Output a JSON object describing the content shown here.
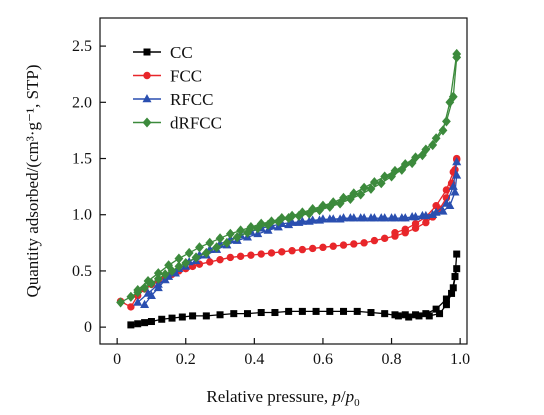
{
  "chart_data": {
    "type": "line",
    "title": "",
    "xlabel": "Relative pressure, p/p₀",
    "xlabel_parts": {
      "prefix": "Relative pressure, ",
      "p": "p",
      "slash": "/",
      "p0": "p",
      "sub0": "0"
    },
    "ylabel": "Quantity adsorbed/(cm³·g⁻¹, STP)",
    "xlim": [
      -0.05,
      1.02
    ],
    "ylim": [
      -0.15,
      2.75
    ],
    "xticks": [
      0,
      0.2,
      0.4,
      0.6,
      0.8,
      1.0
    ],
    "xtick_labels": [
      "0",
      "0.2",
      "0.4",
      "0.6",
      "0.8",
      "1.0"
    ],
    "yticks": [
      0,
      0.5,
      1.0,
      1.5,
      2.0,
      2.5
    ],
    "ytick_labels": [
      "0",
      "0.5",
      "1.0",
      "1.5",
      "2.0",
      "2.5"
    ],
    "grid": false,
    "legend_position": "top-left",
    "series": [
      {
        "name": "CC",
        "color": "#000000",
        "marker": "square",
        "adsorption": {
          "x": [
            0.04,
            0.06,
            0.08,
            0.1,
            0.13,
            0.16,
            0.19,
            0.22,
            0.26,
            0.3,
            0.34,
            0.38,
            0.42,
            0.46,
            0.5,
            0.54,
            0.58,
            0.62,
            0.66,
            0.7,
            0.74,
            0.78,
            0.82,
            0.85,
            0.88,
            0.91,
            0.94,
            0.96,
            0.975,
            0.985,
            0.99
          ],
          "y": [
            0.02,
            0.03,
            0.04,
            0.05,
            0.07,
            0.08,
            0.09,
            0.1,
            0.1,
            0.11,
            0.12,
            0.12,
            0.13,
            0.13,
            0.14,
            0.14,
            0.14,
            0.14,
            0.14,
            0.14,
            0.13,
            0.12,
            0.1,
            0.09,
            0.1,
            0.1,
            0.12,
            0.2,
            0.3,
            0.45,
            0.65
          ]
        },
        "desorption": {
          "x": [
            0.99,
            0.98,
            0.96,
            0.93,
            0.9,
            0.87,
            0.84,
            0.81
          ],
          "y": [
            0.52,
            0.35,
            0.25,
            0.16,
            0.12,
            0.11,
            0.11,
            0.11
          ]
        }
      },
      {
        "name": "FCC",
        "color": "#e8262a",
        "marker": "circle",
        "adsorption": {
          "x": [
            0.01,
            0.04,
            0.06,
            0.08,
            0.1,
            0.12,
            0.14,
            0.16,
            0.18,
            0.2,
            0.22,
            0.24,
            0.27,
            0.3,
            0.33,
            0.36,
            0.39,
            0.42,
            0.45,
            0.48,
            0.51,
            0.54,
            0.57,
            0.6,
            0.63,
            0.66,
            0.69,
            0.72,
            0.75,
            0.78,
            0.81,
            0.84,
            0.87,
            0.9,
            0.92,
            0.94,
            0.96,
            0.975,
            0.985,
            0.99
          ],
          "y": [
            0.23,
            0.18,
            0.28,
            0.34,
            0.38,
            0.41,
            0.44,
            0.47,
            0.5,
            0.52,
            0.54,
            0.56,
            0.58,
            0.6,
            0.62,
            0.63,
            0.64,
            0.65,
            0.66,
            0.67,
            0.68,
            0.69,
            0.7,
            0.71,
            0.72,
            0.73,
            0.74,
            0.75,
            0.77,
            0.79,
            0.81,
            0.84,
            0.88,
            0.93,
            0.98,
            1.05,
            1.15,
            1.28,
            1.4,
            1.5
          ]
        },
        "desorption": {
          "x": [
            0.99,
            0.98,
            0.96,
            0.93,
            0.9,
            0.87,
            0.84,
            0.81
          ],
          "y": [
            1.49,
            1.38,
            1.22,
            1.08,
            0.98,
            0.92,
            0.87,
            0.84
          ]
        }
      },
      {
        "name": "RFCC",
        "color": "#2a4fb0",
        "marker": "triangle",
        "adsorption": {
          "x": [
            0.08,
            0.1,
            0.12,
            0.14,
            0.17,
            0.2,
            0.23,
            0.26,
            0.29,
            0.32,
            0.35,
            0.38,
            0.41,
            0.44,
            0.47,
            0.5,
            0.53,
            0.56,
            0.59,
            0.62,
            0.65,
            0.68,
            0.71,
            0.74,
            0.77,
            0.8,
            0.83,
            0.86,
            0.89,
            0.92,
            0.95,
            0.97,
            0.985,
            0.99
          ],
          "y": [
            0.2,
            0.28,
            0.35,
            0.42,
            0.48,
            0.54,
            0.59,
            0.64,
            0.69,
            0.73,
            0.77,
            0.8,
            0.83,
            0.86,
            0.89,
            0.91,
            0.93,
            0.94,
            0.95,
            0.96,
            0.96,
            0.97,
            0.97,
            0.97,
            0.97,
            0.97,
            0.97,
            0.98,
            0.99,
            1.0,
            1.03,
            1.08,
            1.2,
            1.35
          ]
        },
        "desorption": {
          "x": [
            0.99,
            0.98,
            0.96,
            0.93,
            0.9,
            0.87,
            0.84,
            0.81,
            0.78,
            0.75,
            0.72,
            0.69,
            0.66,
            0.63,
            0.6,
            0.57,
            0.54,
            0.51,
            0.48,
            0.45,
            0.42,
            0.39,
            0.36,
            0.33,
            0.3,
            0.27,
            0.24,
            0.21,
            0.18,
            0.15,
            0.12,
            0.09,
            0.06
          ],
          "y": [
            1.47,
            1.25,
            1.1,
            1.02,
            0.99,
            0.98,
            0.97,
            0.97,
            0.97,
            0.97,
            0.97,
            0.97,
            0.97,
            0.96,
            0.96,
            0.95,
            0.94,
            0.93,
            0.92,
            0.9,
            0.88,
            0.85,
            0.82,
            0.78,
            0.74,
            0.69,
            0.64,
            0.58,
            0.52,
            0.45,
            0.38,
            0.3,
            0.22
          ]
        }
      },
      {
        "name": "dRFCC",
        "color": "#3c8a3c",
        "marker": "diamond",
        "adsorption": {
          "x": [
            0.01,
            0.04,
            0.06,
            0.08,
            0.1,
            0.12,
            0.14,
            0.16,
            0.18,
            0.2,
            0.23,
            0.26,
            0.29,
            0.32,
            0.35,
            0.38,
            0.41,
            0.44,
            0.47,
            0.5,
            0.53,
            0.56,
            0.59,
            0.62,
            0.65,
            0.68,
            0.71,
            0.74,
            0.77,
            0.8,
            0.83,
            0.86,
            0.89,
            0.92,
            0.95,
            0.97,
            0.99
          ],
          "y": [
            0.22,
            0.27,
            0.31,
            0.35,
            0.39,
            0.43,
            0.47,
            0.5,
            0.54,
            0.57,
            0.62,
            0.66,
            0.71,
            0.75,
            0.8,
            0.84,
            0.88,
            0.91,
            0.94,
            0.97,
            0.99,
            1.01,
            1.04,
            1.07,
            1.1,
            1.14,
            1.18,
            1.23,
            1.28,
            1.34,
            1.4,
            1.46,
            1.53,
            1.62,
            1.75,
            2.0,
            2.43
          ]
        },
        "desorption": {
          "x": [
            0.99,
            0.98,
            0.96,
            0.93,
            0.9,
            0.87,
            0.84,
            0.81,
            0.78,
            0.75,
            0.72,
            0.69,
            0.66,
            0.63,
            0.6,
            0.57,
            0.54,
            0.51,
            0.48,
            0.45,
            0.42,
            0.39,
            0.36,
            0.33,
            0.3,
            0.27,
            0.24,
            0.21,
            0.18,
            0.15,
            0.12,
            0.09,
            0.06
          ],
          "y": [
            2.4,
            2.05,
            1.83,
            1.68,
            1.58,
            1.51,
            1.45,
            1.39,
            1.34,
            1.29,
            1.24,
            1.19,
            1.15,
            1.11,
            1.08,
            1.05,
            1.02,
            0.99,
            0.97,
            0.94,
            0.92,
            0.89,
            0.86,
            0.83,
            0.79,
            0.75,
            0.71,
            0.66,
            0.61,
            0.55,
            0.48,
            0.41,
            0.33
          ]
        }
      }
    ]
  }
}
